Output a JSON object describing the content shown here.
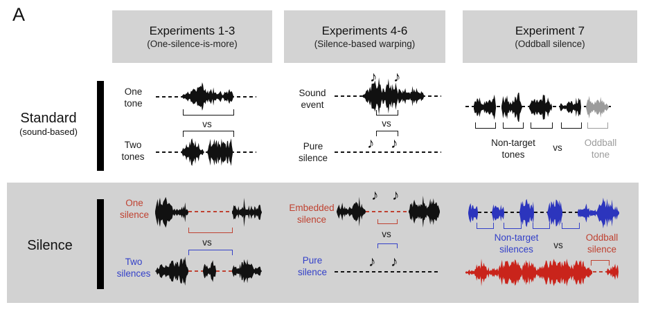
{
  "panel_label": "A",
  "vs_label": "vs",
  "icons": {
    "eighth_note": "♪"
  },
  "colors": {
    "header_bg": "#d3d3d3",
    "section_bg": "#d2d2d2",
    "black": "#111111",
    "red": "#bf4130",
    "red_wave": "#c9241b",
    "blue": "#3340c8",
    "blue_wave": "#2c35bd",
    "gray": "#9b9b9b"
  },
  "headers": [
    {
      "title": "Experiments 1-3",
      "subtitle": "(One-silence-is-more)"
    },
    {
      "title": "Experiments 4-6",
      "subtitle": "(Silence-based warping)"
    },
    {
      "title": "Experiment 7",
      "subtitle": "(Oddball silence)"
    }
  ],
  "standard_row": {
    "label": "Standard",
    "sublabel": "(sound-based)"
  },
  "silence_row": {
    "label": "Silence"
  },
  "standard": {
    "exp13": {
      "row1_label": [
        "One",
        "tone"
      ],
      "row2_label": [
        "Two",
        "tones"
      ]
    },
    "exp46": {
      "row1_label": [
        "Sound",
        "event"
      ],
      "row2_label": [
        "Pure",
        "silence"
      ]
    },
    "exp7": {
      "nontarget_label": [
        "Non-target",
        "tones"
      ],
      "oddball_label": [
        "Oddball",
        "tone"
      ]
    }
  },
  "silence": {
    "exp13": {
      "row1_label": [
        "One",
        "silence"
      ],
      "row2_label": [
        "Two",
        "silences"
      ]
    },
    "exp46": {
      "row1_label": [
        "Embedded",
        "silence"
      ],
      "row2_label": [
        "Pure",
        "silence"
      ]
    },
    "exp7": {
      "nontarget_label": [
        "Non-target",
        "silences"
      ],
      "oddball_label": [
        "Oddball",
        "silence"
      ]
    }
  }
}
